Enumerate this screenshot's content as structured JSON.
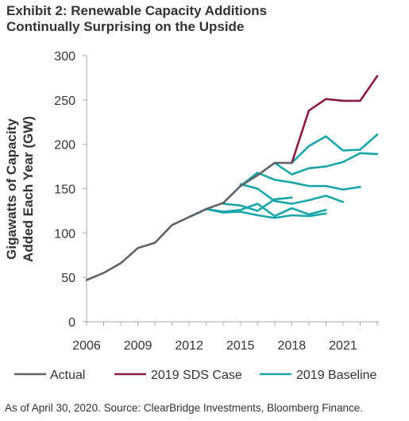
{
  "title_line1": "Exhibit 2: Renewable Capacity Additions",
  "title_line2": "Continually Surprising on the Upside",
  "footnote": "As of April 30, 2020. Source: ClearBridge Investments, Bloomberg Finance.",
  "colors": {
    "actual": "#5f6368",
    "sds": "#8b1a47",
    "baseline": "#1aa5a8"
  },
  "chart_data": {
    "type": "line",
    "title": "Exhibit 2: Renewable Capacity Additions Continually Surprising on the Upside",
    "ylabel_line1": "Gigawatts of Capacity",
    "ylabel_line2": "Added Each Year (GW)",
    "xlabel": "",
    "xlim": [
      2006,
      2023
    ],
    "ylim": [
      0,
      300
    ],
    "x_ticks": [
      "2006",
      "2009",
      "2012",
      "2015",
      "2018",
      "2021"
    ],
    "y_ticks": [
      "0",
      "50",
      "100",
      "150",
      "200",
      "250",
      "300"
    ],
    "grid": false,
    "legend_position": "bottom",
    "legend": [
      "Actual",
      "2019 SDS Case",
      "2019 Baseline"
    ],
    "series": [
      {
        "name": "Actual",
        "color_key": "actual",
        "points": [
          [
            2006,
            47
          ],
          [
            2007,
            55
          ],
          [
            2008,
            66
          ],
          [
            2009,
            83
          ],
          [
            2010,
            89
          ],
          [
            2011,
            109
          ],
          [
            2012,
            118
          ],
          [
            2013,
            127
          ],
          [
            2014,
            134
          ],
          [
            2015,
            153
          ],
          [
            2016,
            165
          ],
          [
            2017,
            179
          ],
          [
            2018,
            179
          ]
        ]
      },
      {
        "name": "2019 SDS Case",
        "color_key": "sds",
        "points": [
          [
            2018,
            179
          ],
          [
            2019,
            238
          ],
          [
            2020,
            251
          ],
          [
            2021,
            249
          ],
          [
            2022,
            249
          ],
          [
            2023,
            277
          ]
        ]
      },
      {
        "name": "2019 Baseline",
        "color_key": "baseline",
        "points": [
          [
            2018,
            179
          ],
          [
            2019,
            198
          ],
          [
            2020,
            209
          ],
          [
            2021,
            193
          ],
          [
            2022,
            194
          ],
          [
            2023,
            211
          ]
        ]
      },
      {
        "name": "",
        "color_key": "baseline",
        "points": [
          [
            2017,
            179
          ],
          [
            2018,
            166
          ],
          [
            2019,
            173
          ],
          [
            2020,
            175
          ],
          [
            2021,
            180
          ],
          [
            2022,
            190
          ],
          [
            2023,
            189
          ]
        ]
      },
      {
        "name": "",
        "color_key": "baseline",
        "points": [
          [
            2015,
            153
          ],
          [
            2016,
            168
          ],
          [
            2017,
            160
          ],
          [
            2018,
            157
          ],
          [
            2019,
            153
          ],
          [
            2020,
            153
          ],
          [
            2021,
            149
          ],
          [
            2022,
            152
          ]
        ]
      },
      {
        "name": "",
        "color_key": "baseline",
        "points": [
          [
            2015,
            155
          ],
          [
            2016,
            150
          ],
          [
            2017,
            136
          ],
          [
            2018,
            133
          ],
          [
            2019,
            137
          ],
          [
            2020,
            142
          ],
          [
            2021,
            135
          ]
        ]
      },
      {
        "name": "",
        "color_key": "baseline",
        "points": [
          [
            2014,
            133
          ],
          [
            2015,
            131
          ],
          [
            2016,
            125
          ],
          [
            2017,
            138
          ],
          [
            2018,
            140
          ]
        ]
      },
      {
        "name": "",
        "color_key": "baseline",
        "points": [
          [
            2013,
            127
          ],
          [
            2014,
            124
          ],
          [
            2015,
            126
          ],
          [
            2016,
            133
          ],
          [
            2017,
            119
          ],
          [
            2018,
            128
          ],
          [
            2019,
            121
          ],
          [
            2020,
            126
          ]
        ]
      },
      {
        "name": "",
        "color_key": "baseline",
        "points": [
          [
            2012,
            118
          ],
          [
            2013,
            127
          ],
          [
            2014,
            123
          ],
          [
            2015,
            124
          ],
          [
            2016,
            120
          ],
          [
            2017,
            117
          ],
          [
            2018,
            120
          ],
          [
            2019,
            119
          ],
          [
            2020,
            122
          ]
        ]
      }
    ]
  }
}
